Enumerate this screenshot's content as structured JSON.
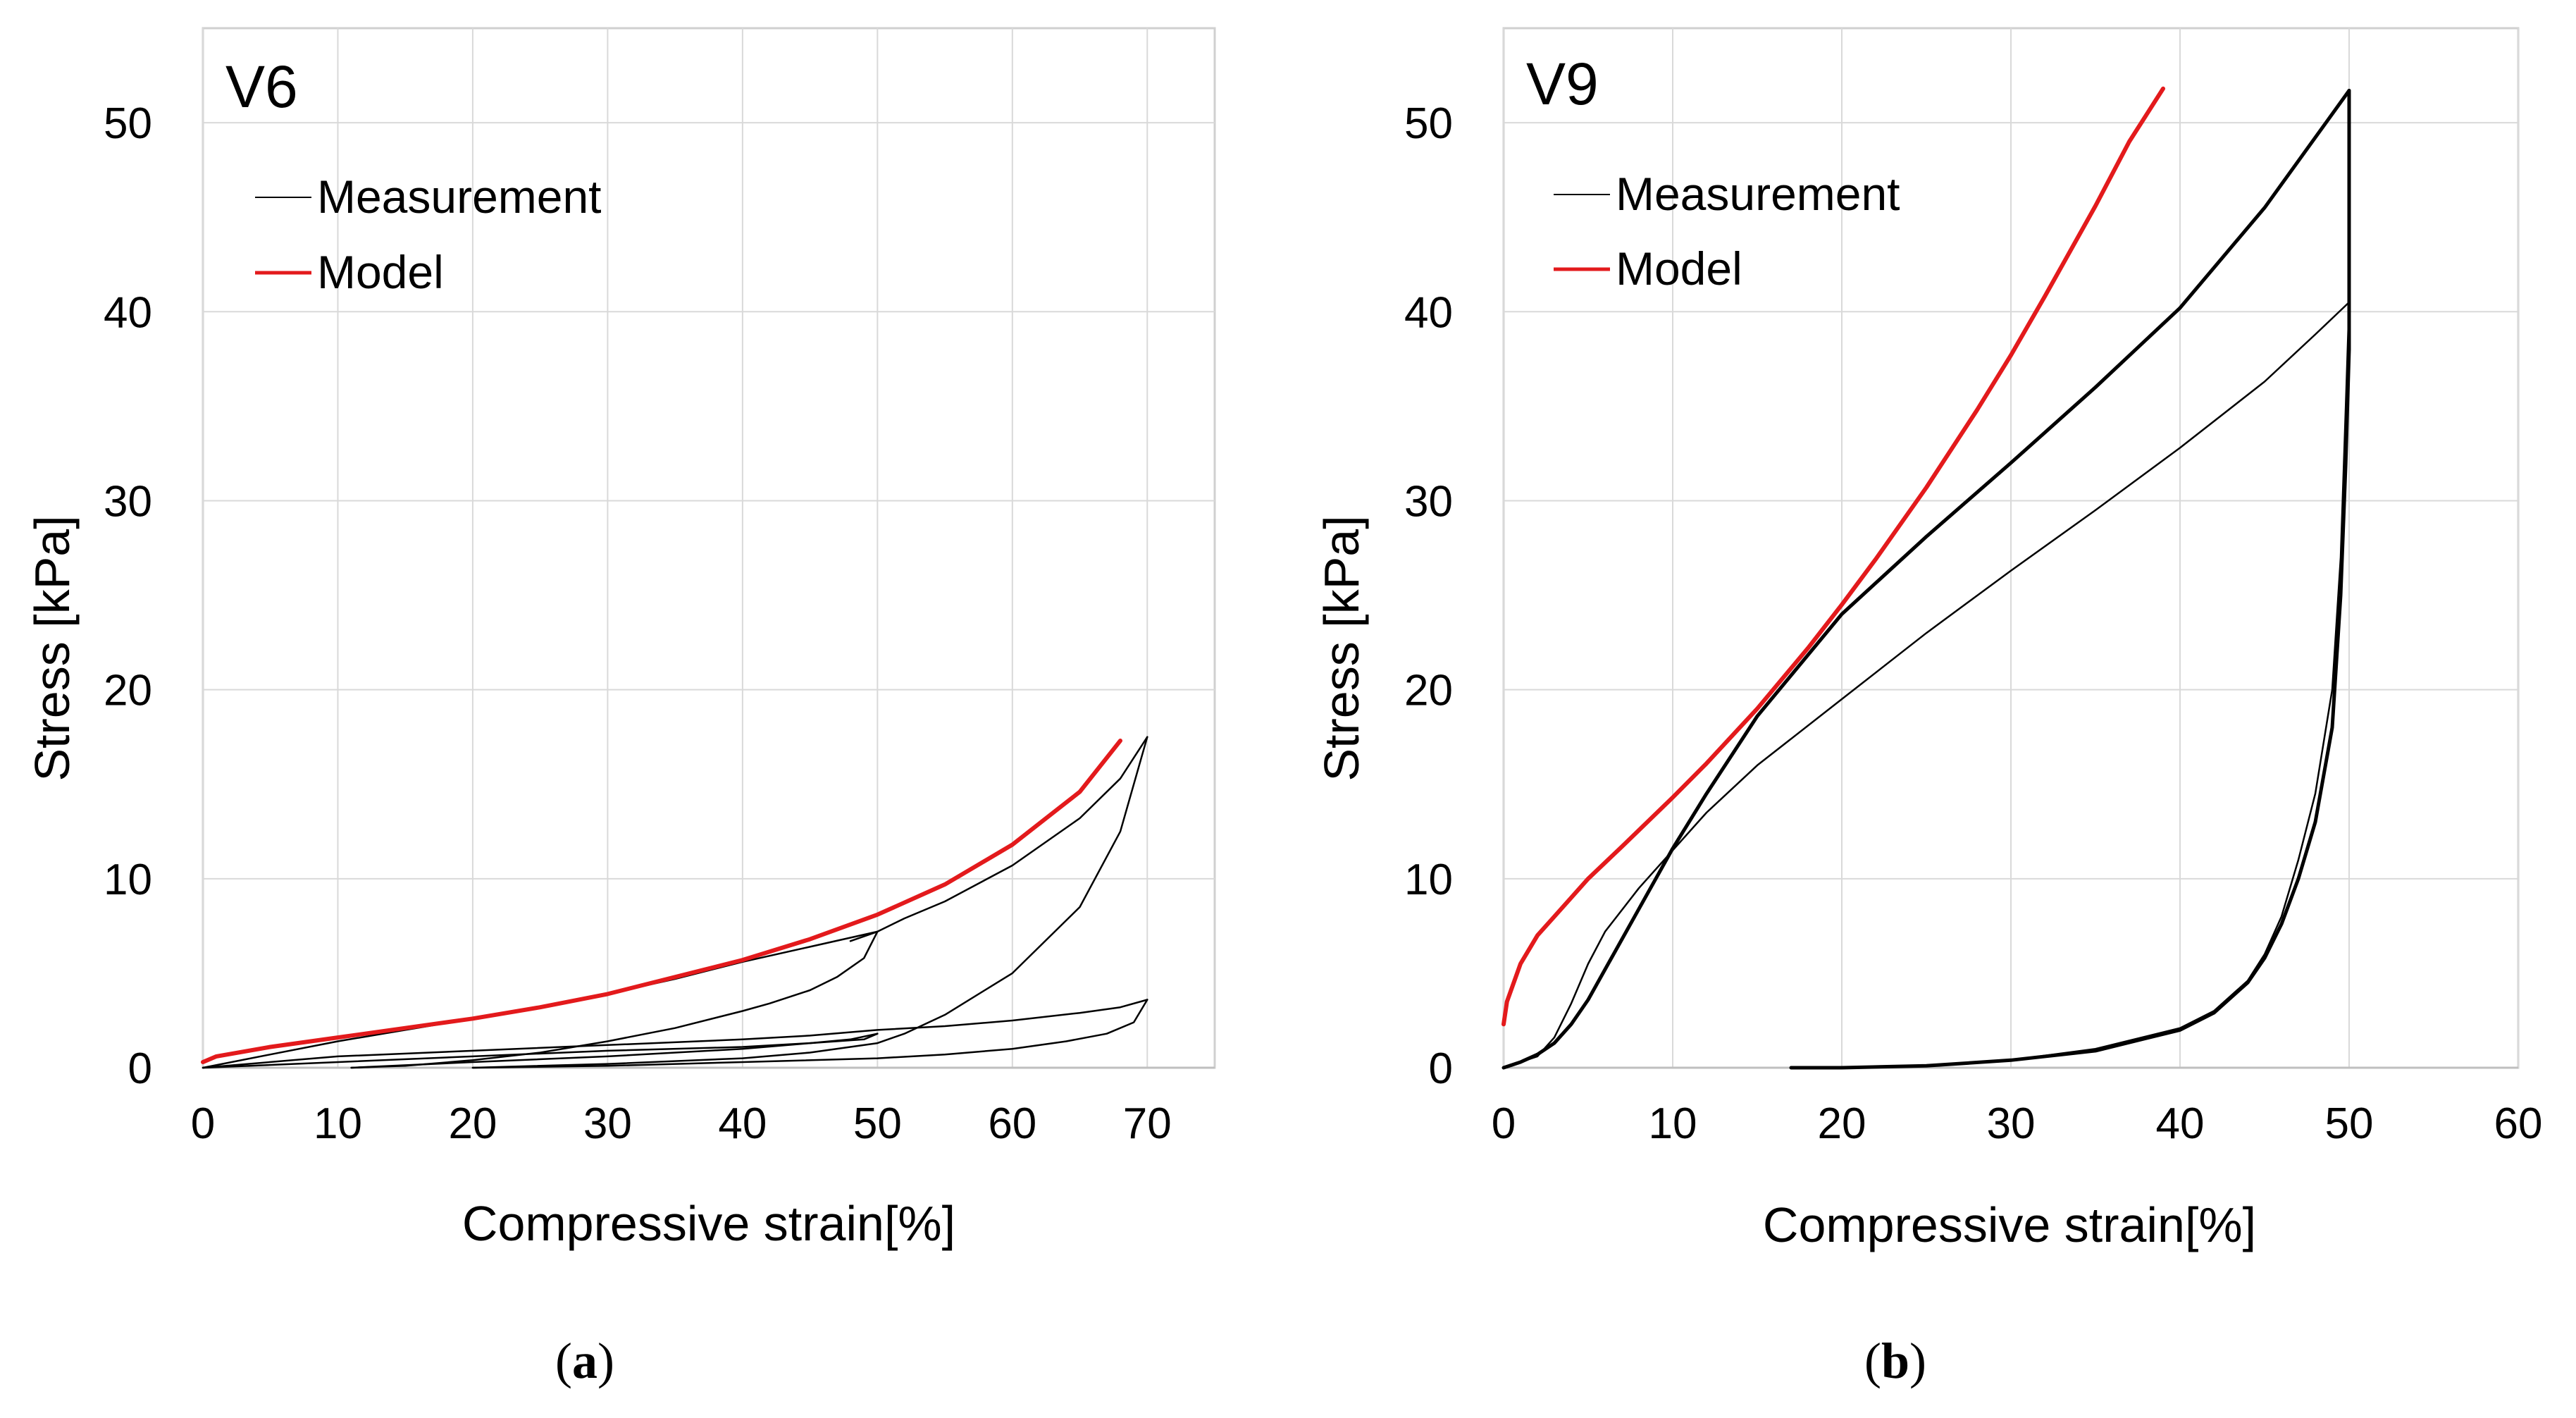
{
  "chart_data": [
    {
      "type": "line",
      "title": "V6",
      "caption_letter": "a",
      "xlabel": "Compressive strain[%]",
      "ylabel": "Stress [kPa]",
      "xlim": [
        0,
        75
      ],
      "ylim": [
        0,
        55
      ],
      "xticks": [
        0,
        10,
        20,
        30,
        40,
        50,
        60,
        70
      ],
      "yticks": [
        0,
        10,
        20,
        30,
        40,
        50
      ],
      "grid": true,
      "legend_position": "top-left",
      "series": [
        {
          "name": "Measurement",
          "color": "#000000",
          "segments": [
            {
              "x": [
                0,
                5,
                10,
                15,
                20,
                25,
                30,
                35,
                40,
                45,
                50
              ],
              "y": [
                0,
                0.7,
                1.4,
                2.0,
                2.6,
                3.2,
                3.9,
                4.7,
                5.6,
                6.4,
                7.2
              ]
            },
            {
              "x": [
                50,
                49,
                47,
                45,
                42,
                40,
                35,
                30,
                25,
                20,
                15,
                11
              ],
              "y": [
                7.2,
                5.8,
                4.8,
                4.1,
                3.4,
                3.0,
                2.1,
                1.4,
                0.8,
                0.4,
                0.1,
                0
              ]
            },
            {
              "x": [
                11,
                20,
                30,
                40,
                45,
                48,
                50
              ],
              "y": [
                0,
                0.3,
                0.6,
                1.0,
                1.3,
                1.5,
                1.8
              ]
            },
            {
              "x": [
                50,
                49,
                45,
                40,
                30,
                20,
                10,
                0
              ],
              "y": [
                1.8,
                1.5,
                1.3,
                1.1,
                0.9,
                0.6,
                0.3,
                0
              ]
            },
            {
              "x": [
                0,
                10,
                20,
                30,
                40,
                45,
                50,
                55,
                60,
                65,
                68,
                70
              ],
              "y": [
                0,
                0.6,
                0.9,
                1.2,
                1.5,
                1.7,
                2.0,
                2.2,
                2.5,
                2.9,
                3.2,
                3.6
              ]
            },
            {
              "x": [
                70,
                69,
                67,
                64,
                60,
                55,
                50,
                40,
                30,
                20
              ],
              "y": [
                3.6,
                2.4,
                1.8,
                1.4,
                1.0,
                0.7,
                0.5,
                0.3,
                0.1,
                0
              ]
            },
            {
              "x": [
                20,
                30,
                40,
                45,
                50,
                52,
                55,
                60,
                65,
                68,
                70
              ],
              "y": [
                0,
                0.2,
                0.5,
                0.8,
                1.3,
                1.8,
                2.8,
                5.0,
                8.5,
                12.5,
                17.5
              ]
            },
            {
              "x": [
                70,
                68,
                65,
                60,
                55,
                52,
                50,
                48
              ],
              "y": [
                17.5,
                15.3,
                13.2,
                10.7,
                8.8,
                7.9,
                7.2,
                6.7
              ]
            }
          ]
        },
        {
          "name": "Model",
          "color": "#e31a1c",
          "x": [
            0,
            1,
            5,
            10,
            15,
            20,
            25,
            30,
            35,
            40,
            45,
            50,
            55,
            60,
            65,
            68
          ],
          "y": [
            0.3,
            0.6,
            1.1,
            1.6,
            2.1,
            2.6,
            3.2,
            3.9,
            4.8,
            5.7,
            6.8,
            8.1,
            9.7,
            11.8,
            14.6,
            17.3
          ]
        }
      ]
    },
    {
      "type": "line",
      "title": "V9",
      "caption_letter": "b",
      "xlabel": "Compressive strain[%]",
      "ylabel": "Stress [kPa]",
      "xlim": [
        0,
        60
      ],
      "ylim": [
        0,
        55
      ],
      "xticks": [
        0,
        10,
        20,
        30,
        40,
        50,
        60
      ],
      "yticks": [
        0,
        10,
        20,
        30,
        40,
        50
      ],
      "grid": true,
      "legend_position": "top-left",
      "series": [
        {
          "name": "Measurement",
          "color": "#000000",
          "segments": [
            {
              "width": 2.5,
              "x": [
                0,
                2,
                3,
                4,
                5,
                6,
                8,
                10,
                12,
                15,
                20,
                25,
                30,
                35,
                40,
                45,
                48,
                50
              ],
              "y": [
                0,
                0.6,
                1.6,
                3.4,
                5.5,
                7.2,
                9.5,
                11.5,
                13.5,
                16.0,
                19.5,
                23.0,
                26.3,
                29.5,
                32.8,
                36.3,
                38.8,
                40.5
              ]
            },
            {
              "width": 2.5,
              "x": [
                50,
                49.8,
                49.5,
                49,
                48,
                47,
                46,
                45,
                44,
                42,
                40,
                35,
                30,
                25,
                20,
                17
              ],
              "y": [
                40.5,
                35.0,
                27.0,
                20.0,
                14.5,
                11.0,
                8.0,
                6.0,
                4.6,
                3.0,
                2.1,
                1.0,
                0.4,
                0.1,
                0,
                0
              ]
            },
            {
              "width": 5,
              "x": [
                0,
                1,
                2,
                3,
                4,
                5,
                6,
                7,
                8,
                9,
                10,
                12,
                15,
                20,
                25,
                30,
                35,
                40,
                45,
                50
              ],
              "y": [
                0,
                0.3,
                0.7,
                1.3,
                2.3,
                3.6,
                5.2,
                6.8,
                8.4,
                10.0,
                11.6,
                14.5,
                18.6,
                24.0,
                28.1,
                32.0,
                36.0,
                40.2,
                45.5,
                51.7
              ]
            },
            {
              "width": 5,
              "x": [
                50,
                50,
                50,
                49.8,
                49.5,
                49,
                48,
                47,
                46,
                45,
                44,
                42,
                40,
                35,
                30,
                25,
                20,
                17
              ],
              "y": [
                51.7,
                48.0,
                38.0,
                32.0,
                25.0,
                18.0,
                13.0,
                10.0,
                7.6,
                5.8,
                4.5,
                2.9,
                2.0,
                0.9,
                0.4,
                0.1,
                0,
                0
              ]
            }
          ]
        },
        {
          "name": "Model",
          "color": "#e31a1c",
          "x": [
            0,
            0.2,
            1,
            2,
            3,
            5,
            7,
            10,
            12,
            15,
            18,
            20,
            22,
            25,
            28,
            30,
            32,
            35,
            37,
            39
          ],
          "y": [
            2.3,
            3.5,
            5.5,
            7.0,
            8.0,
            10.0,
            11.7,
            14.3,
            16.1,
            19.0,
            22.2,
            24.5,
            26.9,
            30.7,
            34.8,
            37.7,
            40.8,
            45.6,
            49.0,
            51.8
          ]
        }
      ]
    }
  ]
}
